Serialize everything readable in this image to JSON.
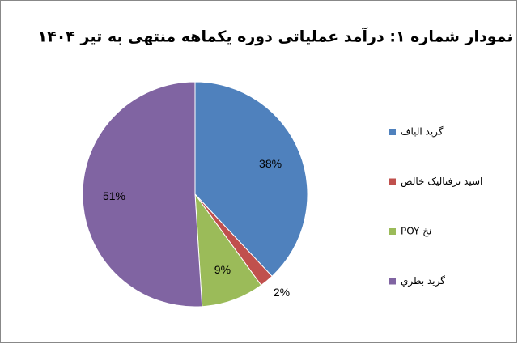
{
  "chart_data": {
    "type": "pie",
    "title": "نمودار شماره ۱: درآمد عملیاتی دوره یکماهه منتهی به تیر ۱۴۰۴",
    "categories": [
      "گرید الیاف",
      "اسید ترفتالیک خالص",
      "نخ POY",
      "گرید بطري"
    ],
    "values": [
      38,
      2,
      9,
      51
    ],
    "value_labels": [
      "38%",
      "2%",
      "9%",
      "51%"
    ],
    "colors": [
      "#4f81bd",
      "#c0504d",
      "#9bbb59",
      "#8064a2"
    ],
    "legend": "right"
  }
}
